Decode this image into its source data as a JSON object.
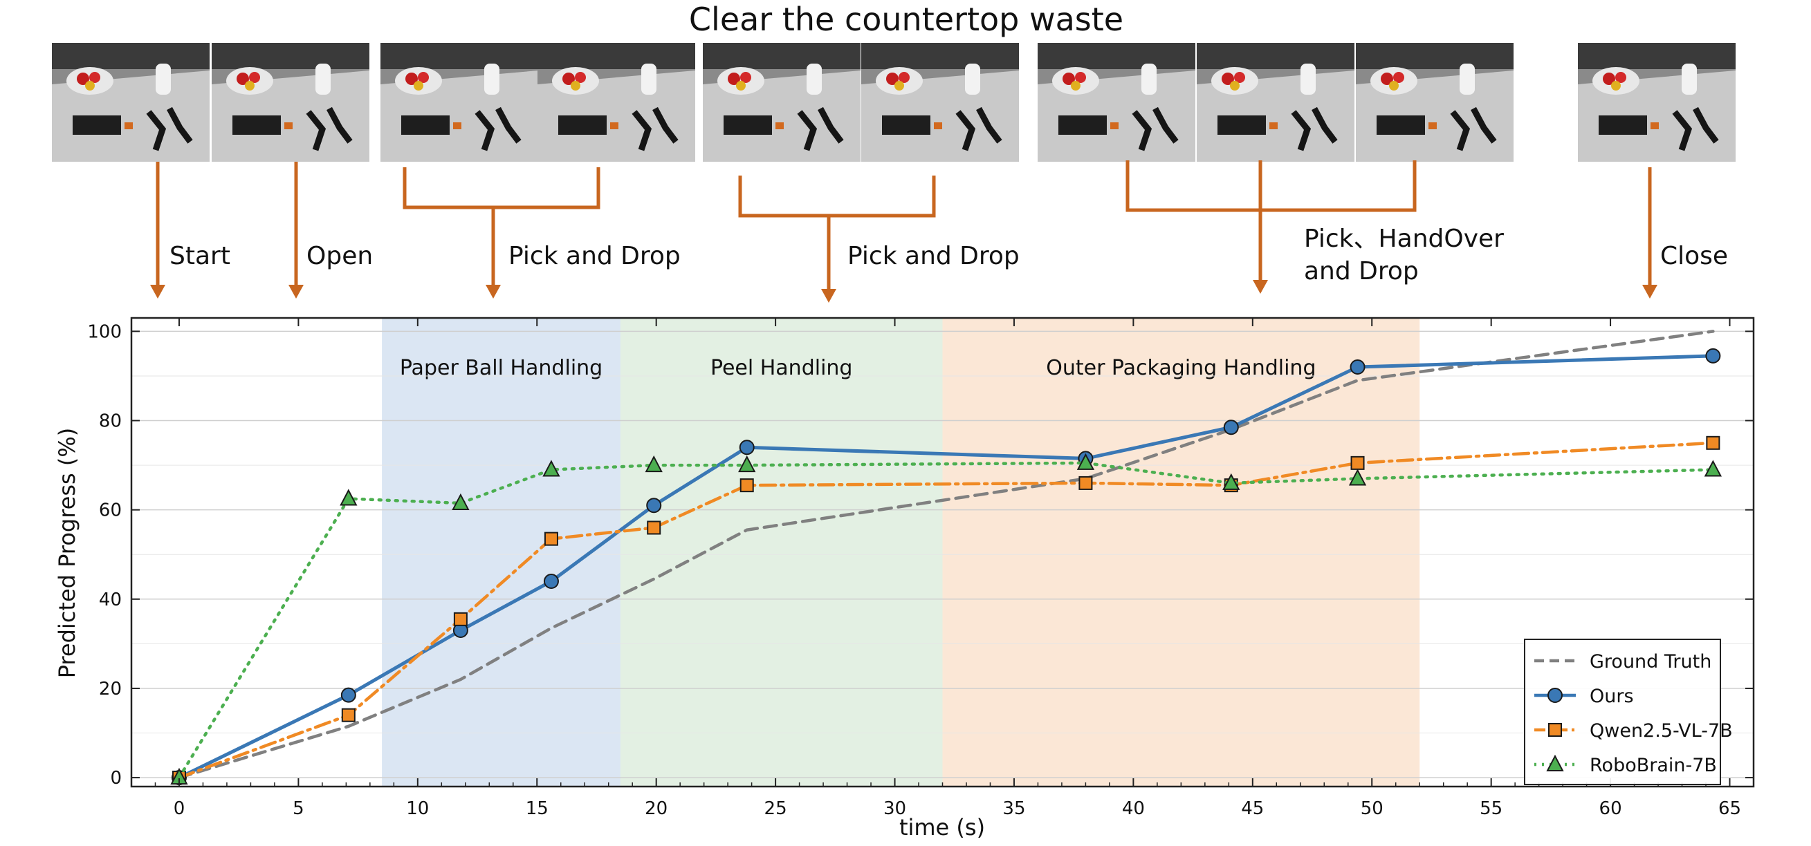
{
  "figure": {
    "title": "Clear the countertop waste",
    "phase_labels": [
      {
        "text": "Start"
      },
      {
        "text": "Open"
      },
      {
        "text": "Pick and Drop"
      },
      {
        "text": "Pick and Drop"
      },
      {
        "text": "Pick、HandOver",
        "text2": "and Drop"
      },
      {
        "text": "Close"
      }
    ],
    "frames": [
      {
        "desc": "frame-start"
      },
      {
        "desc": "frame-open"
      },
      {
        "desc": "frame-pick1a"
      },
      {
        "desc": "frame-pick1b"
      },
      {
        "desc": "frame-pick2a"
      },
      {
        "desc": "frame-pick2b"
      },
      {
        "desc": "frame-pick3a"
      },
      {
        "desc": "frame-pick3b"
      },
      {
        "desc": "frame-pick3c"
      },
      {
        "desc": "frame-close"
      }
    ]
  },
  "chart_data": {
    "type": "line",
    "xlabel": "time (s)",
    "ylabel": "Predicted Progress (%)",
    "xlim": [
      -2,
      66
    ],
    "ylim": [
      -2,
      103
    ],
    "xticks": [
      0,
      5,
      10,
      15,
      20,
      25,
      30,
      35,
      40,
      45,
      50,
      55,
      60,
      65
    ],
    "yticks": [
      0,
      20,
      40,
      60,
      80,
      100
    ],
    "grid": true,
    "legend_position": "bottom-right",
    "regions": [
      {
        "label": "Paper Ball Handling",
        "x0": 8.5,
        "x1": 18.5,
        "color": "#dbe6f3"
      },
      {
        "label": "Peel Handling",
        "x0": 18.5,
        "x1": 32,
        "color": "#e3f0e3"
      },
      {
        "label": "Outer Packaging Handling",
        "x0": 32,
        "x1": 52,
        "color": "#fbe7d6"
      }
    ],
    "series": [
      {
        "name": "Ground Truth",
        "color": "#808080",
        "style": "dashed",
        "marker": "none",
        "x": [
          0,
          7.1,
          11.8,
          15.6,
          19.9,
          23.8,
          38.0,
          44.1,
          49.4,
          64.3
        ],
        "y": [
          0,
          11.5,
          22,
          33.5,
          44.5,
          55.5,
          67,
          78,
          89,
          100
        ]
      },
      {
        "name": "Ours",
        "color": "#3a78b5",
        "style": "solid",
        "marker": "circle",
        "x": [
          0,
          7.1,
          11.8,
          15.6,
          19.9,
          23.8,
          38.0,
          44.1,
          49.4,
          64.3
        ],
        "y": [
          0,
          18.5,
          33,
          44,
          61,
          74,
          71.5,
          78.5,
          92,
          94.5
        ]
      },
      {
        "name": "Qwen2.5-VL-7B",
        "color": "#f08a24",
        "style": "dashdot",
        "marker": "square",
        "x": [
          0,
          7.1,
          11.8,
          15.6,
          19.9,
          23.8,
          38.0,
          44.1,
          49.4,
          64.3
        ],
        "y": [
          0,
          14,
          35.5,
          53.5,
          56,
          65.5,
          66,
          65.5,
          70.5,
          75
        ]
      },
      {
        "name": "RoboBrain-7B",
        "color": "#4caf50",
        "style": "dotted",
        "marker": "triangle",
        "x": [
          0,
          7.1,
          11.8,
          15.6,
          19.9,
          23.8,
          38.0,
          44.1,
          49.4,
          64.3
        ],
        "y": [
          0,
          62.5,
          61.5,
          69,
          70,
          70,
          70.5,
          66,
          67,
          69
        ]
      }
    ]
  }
}
